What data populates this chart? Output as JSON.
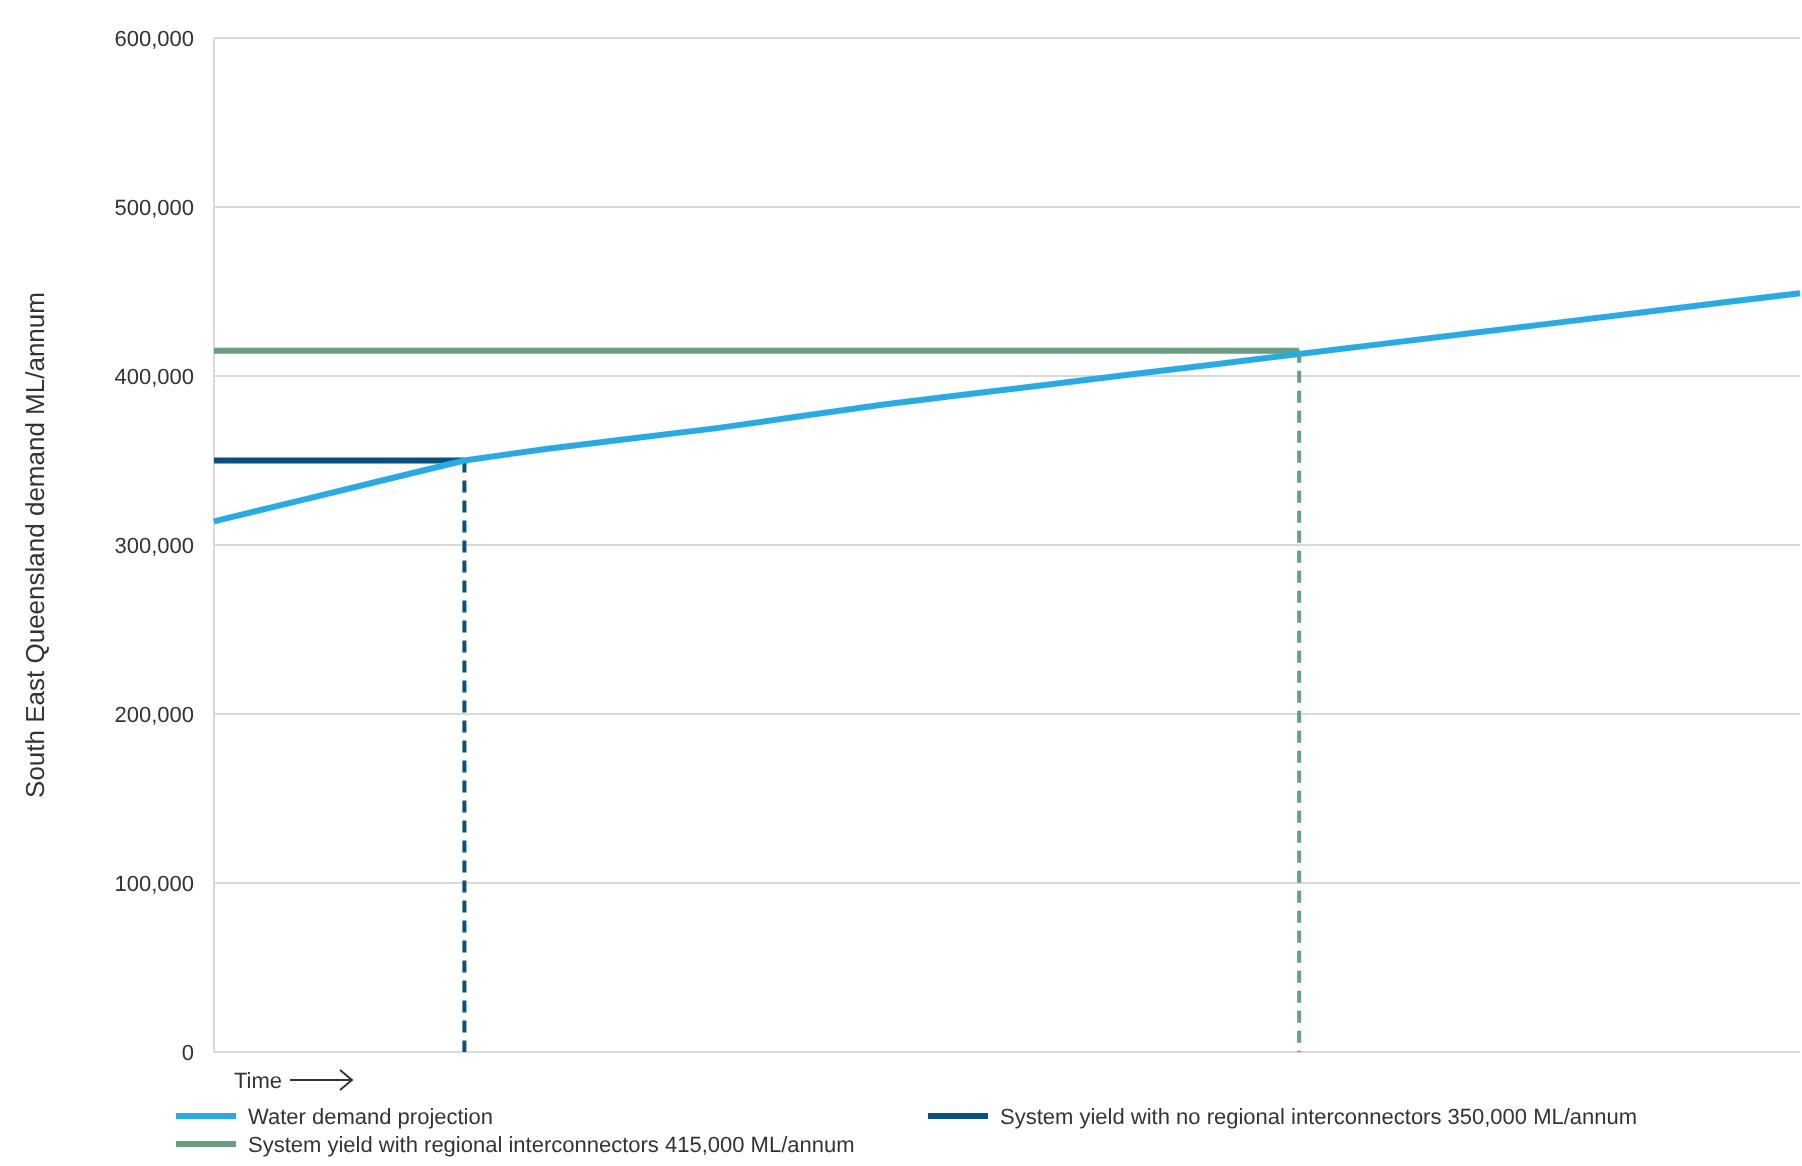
{
  "chart_data": {
    "type": "line",
    "ylabel": "South East Queensland demand ML/annum",
    "xlabel": "Time",
    "categories": [
      null,
      null,
      null,
      null,
      null,
      null,
      null,
      null,
      null,
      null,
      null,
      null,
      null,
      null,
      null,
      null,
      null,
      null,
      null,
      null
    ],
    "series": [
      {
        "name": "Water demand projection",
        "color": "#29abe2",
        "values": [
          314000,
          326000,
          338000,
          350000,
          357000,
          363000,
          369000,
          376000,
          383000,
          389000,
          395000,
          401000,
          407000,
          413000,
          419000,
          425000,
          431000,
          437000,
          443000,
          449000
        ]
      },
      {
        "name": "System yield with no regional interconnectors 350,000 ML/annum",
        "color": "#0b4f7c",
        "values": [
          350000,
          350000,
          350000,
          350000,
          null,
          null,
          null,
          null,
          null,
          null,
          null,
          null,
          null,
          null,
          null,
          null,
          null,
          null,
          null,
          null
        ]
      },
      {
        "name": "System yield with regional interconnectors 415,000 ML/annum",
        "color": "#6a9e80",
        "values": [
          415000,
          415000,
          415000,
          415000,
          415000,
          415000,
          415000,
          415000,
          415000,
          415000,
          415000,
          415000,
          415000,
          415000,
          null,
          null,
          null,
          null,
          null,
          null
        ]
      }
    ],
    "ylim": [
      0,
      600000
    ],
    "yticks": [
      {
        "value": 0,
        "label": "0"
      },
      {
        "value": 100000,
        "label": "100,000"
      },
      {
        "value": 200000,
        "label": "200,000"
      },
      {
        "value": 300000,
        "label": "300,000"
      },
      {
        "value": 400000,
        "label": "400,000"
      },
      {
        "value": 500000,
        "label": "500,000"
      },
      {
        "value": 600000,
        "label": "600,000"
      }
    ],
    "grid": "y",
    "legend": "bottom",
    "tick_labels": "y",
    "marker": "none",
    "line_style": "solid"
  }
}
